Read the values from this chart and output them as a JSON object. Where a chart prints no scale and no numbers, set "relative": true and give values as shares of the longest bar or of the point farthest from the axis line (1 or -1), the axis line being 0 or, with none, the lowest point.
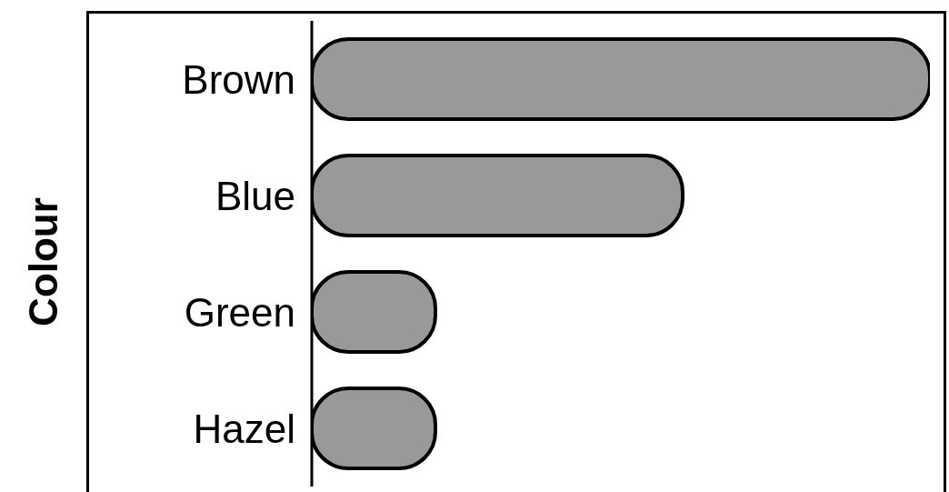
{
  "chart_data": {
    "type": "bar",
    "orientation": "horizontal",
    "relative": true,
    "ylabel": "Colour",
    "categories": [
      "Brown",
      "Blue",
      "Green",
      "Hazel"
    ],
    "values": [
      1,
      0.6,
      0.2,
      0.2
    ],
    "color": "#999999"
  }
}
